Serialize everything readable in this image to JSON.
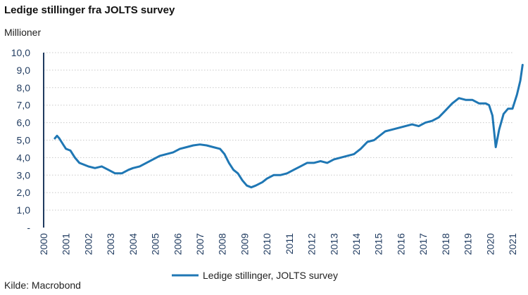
{
  "chart_data": {
    "type": "line",
    "title": "Ledige stillinger fra JOLTS survey",
    "ylabel": "Millioner",
    "source": "Kilde: Macrobond",
    "ylim": [
      0,
      10
    ],
    "xlim": [
      2000,
      2021
    ],
    "y_ticks": [
      "-",
      "1,0",
      "2,0",
      "3,0",
      "4,0",
      "5,0",
      "6,0",
      "7,0",
      "8,0",
      "9,0",
      "10,0"
    ],
    "x_ticks": [
      "2000",
      "2001",
      "2002",
      "2003",
      "2004",
      "2005",
      "2006",
      "2007",
      "2008",
      "2009",
      "2010",
      "2011",
      "2012",
      "2013",
      "2014",
      "2015",
      "2016",
      "2017",
      "2018",
      "2019",
      "2020",
      "2021"
    ],
    "grid": true,
    "legend_position": "bottom",
    "colors": {
      "line": "#1f77b4",
      "grid": "#c8c8c8",
      "axis": "#1f3a5f"
    },
    "series": [
      {
        "name": "Ledige stillinger, JOLTS survey",
        "points": [
          [
            2000.5,
            5.1
          ],
          [
            2000.6,
            5.25
          ],
          [
            2000.7,
            5.1
          ],
          [
            2000.9,
            4.7
          ],
          [
            2001.0,
            4.5
          ],
          [
            2001.2,
            4.4
          ],
          [
            2001.4,
            4.0
          ],
          [
            2001.6,
            3.7
          ],
          [
            2001.8,
            3.6
          ],
          [
            2002.0,
            3.5
          ],
          [
            2002.3,
            3.4
          ],
          [
            2002.6,
            3.5
          ],
          [
            2002.9,
            3.3
          ],
          [
            2003.2,
            3.1
          ],
          [
            2003.5,
            3.1
          ],
          [
            2003.8,
            3.3
          ],
          [
            2004.0,
            3.4
          ],
          [
            2004.3,
            3.5
          ],
          [
            2004.6,
            3.7
          ],
          [
            2004.9,
            3.9
          ],
          [
            2005.2,
            4.1
          ],
          [
            2005.5,
            4.2
          ],
          [
            2005.8,
            4.3
          ],
          [
            2006.1,
            4.5
          ],
          [
            2006.4,
            4.6
          ],
          [
            2006.7,
            4.7
          ],
          [
            2007.0,
            4.75
          ],
          [
            2007.3,
            4.7
          ],
          [
            2007.6,
            4.6
          ],
          [
            2007.9,
            4.5
          ],
          [
            2008.1,
            4.2
          ],
          [
            2008.3,
            3.7
          ],
          [
            2008.5,
            3.3
          ],
          [
            2008.7,
            3.1
          ],
          [
            2008.9,
            2.7
          ],
          [
            2009.1,
            2.4
          ],
          [
            2009.3,
            2.3
          ],
          [
            2009.5,
            2.4
          ],
          [
            2009.8,
            2.6
          ],
          [
            2010.0,
            2.8
          ],
          [
            2010.3,
            3.0
          ],
          [
            2010.6,
            3.0
          ],
          [
            2010.9,
            3.1
          ],
          [
            2011.2,
            3.3
          ],
          [
            2011.5,
            3.5
          ],
          [
            2011.8,
            3.7
          ],
          [
            2012.1,
            3.7
          ],
          [
            2012.4,
            3.8
          ],
          [
            2012.7,
            3.7
          ],
          [
            2013.0,
            3.9
          ],
          [
            2013.3,
            4.0
          ],
          [
            2013.6,
            4.1
          ],
          [
            2013.9,
            4.2
          ],
          [
            2014.2,
            4.5
          ],
          [
            2014.5,
            4.9
          ],
          [
            2014.8,
            5.0
          ],
          [
            2015.0,
            5.2
          ],
          [
            2015.3,
            5.5
          ],
          [
            2015.6,
            5.6
          ],
          [
            2015.9,
            5.7
          ],
          [
            2016.2,
            5.8
          ],
          [
            2016.5,
            5.9
          ],
          [
            2016.8,
            5.8
          ],
          [
            2017.1,
            6.0
          ],
          [
            2017.4,
            6.1
          ],
          [
            2017.7,
            6.3
          ],
          [
            2018.0,
            6.7
          ],
          [
            2018.3,
            7.1
          ],
          [
            2018.6,
            7.4
          ],
          [
            2018.9,
            7.3
          ],
          [
            2019.2,
            7.3
          ],
          [
            2019.5,
            7.1
          ],
          [
            2019.8,
            7.1
          ],
          [
            2019.95,
            7.0
          ],
          [
            2020.1,
            6.4
          ],
          [
            2020.25,
            4.6
          ],
          [
            2020.4,
            5.6
          ],
          [
            2020.6,
            6.5
          ],
          [
            2020.8,
            6.8
          ],
          [
            2021.0,
            6.8
          ],
          [
            2021.2,
            7.6
          ],
          [
            2021.35,
            8.4
          ],
          [
            2021.45,
            9.3
          ]
        ]
      }
    ]
  }
}
